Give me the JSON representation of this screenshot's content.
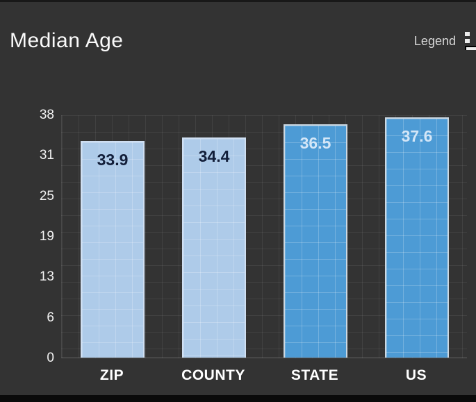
{
  "header": {
    "title": "Median Age",
    "legend_label": "Legend",
    "legend_icon": "list-icon"
  },
  "colors": {
    "background": "#333333",
    "light_bar_fill": "#aecbe9",
    "light_bar_border": "#cfdff2",
    "dark_bar_fill": "#4d9bd5",
    "dark_bar_border": "#ccd8e2",
    "light_bar_text": "#131f3a",
    "dark_bar_text": "#d3e6f7",
    "axis_text": "#f2f2f2",
    "title_text": "#fafafa"
  },
  "chart_data": {
    "type": "bar",
    "title": "Median Age",
    "categories": [
      "ZIP",
      "COUNTY",
      "STATE",
      "US"
    ],
    "values": [
      33.9,
      34.4,
      36.5,
      37.6
    ],
    "value_labels": [
      "33.9",
      "34.4",
      "36.5",
      "37.6"
    ],
    "xlabel": "",
    "ylabel": "",
    "ylim": [
      0,
      38
    ],
    "yticks": [
      "38",
      "31",
      "25",
      "19",
      "13",
      "6",
      "0"
    ],
    "grid": true,
    "legend_position": "top-right",
    "bar_fills": [
      "#aecbe9",
      "#aecbe9",
      "#4d9bd5",
      "#4d9bd5"
    ],
    "bar_borders": [
      "#cfdff2",
      "#cfdff2",
      "#ccd8e2",
      "#ccd8e2"
    ],
    "label_colors": [
      "#131f3a",
      "#131f3a",
      "#d3e6f7",
      "#d3e6f7"
    ]
  }
}
